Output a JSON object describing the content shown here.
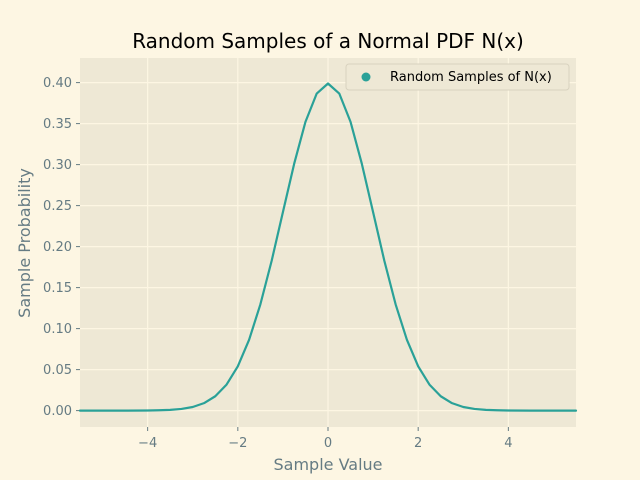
{
  "chart_data": {
    "type": "line",
    "title": "Random Samples of a Normal PDF N(x)",
    "xlabel": "Sample Value",
    "ylabel": "Sample Probability",
    "xlim": [
      -5.5,
      5.5
    ],
    "ylim": [
      -0.02,
      0.43
    ],
    "xticks": [
      -4,
      -2,
      0,
      2,
      4
    ],
    "xtick_labels": [
      "−4",
      "−2",
      "0",
      "2",
      "4"
    ],
    "yticks": [
      0.0,
      0.05,
      0.1,
      0.15,
      0.2,
      0.25,
      0.3,
      0.35,
      0.4
    ],
    "ytick_labels": [
      "0.00",
      "0.05",
      "0.10",
      "0.15",
      "0.20",
      "0.25",
      "0.30",
      "0.35",
      "0.40"
    ],
    "grid": true,
    "legend_position": "top-right",
    "series": [
      {
        "name": "Random Samples of N(x)",
        "color": "#2aa198",
        "x": [
          -5.5,
          -5.0,
          -4.5,
          -4.0,
          -3.75,
          -3.5,
          -3.25,
          -3.0,
          -2.75,
          -2.5,
          -2.25,
          -2.0,
          -1.75,
          -1.5,
          -1.25,
          -1.0,
          -0.75,
          -0.5,
          -0.25,
          0.0,
          0.25,
          0.5,
          0.75,
          1.0,
          1.25,
          1.5,
          1.75,
          2.0,
          2.25,
          2.5,
          2.75,
          3.0,
          3.25,
          3.5,
          3.75,
          4.0,
          4.5,
          5.0,
          5.5
        ],
        "y": [
          0.0,
          0.0,
          0.0,
          0.0001,
          0.0004,
          0.0009,
          0.002,
          0.0044,
          0.0091,
          0.0175,
          0.0317,
          0.054,
          0.0863,
          0.1295,
          0.1826,
          0.242,
          0.3011,
          0.3521,
          0.3867,
          0.3989,
          0.3867,
          0.3521,
          0.3011,
          0.242,
          0.1826,
          0.1295,
          0.0863,
          0.054,
          0.0317,
          0.0175,
          0.0091,
          0.0044,
          0.002,
          0.0009,
          0.0004,
          0.0001,
          0.0,
          0.0,
          0.0
        ]
      }
    ]
  },
  "colors": {
    "figure_background": "#fdf6e3",
    "axes_background": "#eee8d5",
    "grid": "#fdf6e3",
    "text": "#657b83",
    "line": "#2aa198"
  }
}
